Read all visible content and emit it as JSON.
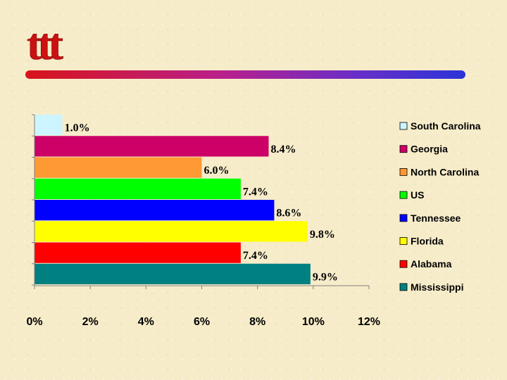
{
  "header": {
    "logo_icon": "triple-t-logo-icon",
    "logo_text": "ttt",
    "bar_colors": [
      "#d8141a",
      "#b8208c",
      "#6a2ec8",
      "#2a34d8"
    ]
  },
  "chart_data": {
    "type": "bar",
    "orientation": "horizontal",
    "categories": [
      "South Carolina",
      "Georgia",
      "North Carolina",
      "US",
      "Tennessee",
      "Florida",
      "Alabama",
      "Mississippi"
    ],
    "values": [
      1.0,
      8.4,
      6.0,
      7.4,
      8.6,
      9.8,
      7.4,
      9.9
    ],
    "value_labels": [
      "1.0%",
      "8.4%",
      "6.0%",
      "7.4%",
      "8.6%",
      "9.8%",
      "7.4%",
      "9.9%"
    ],
    "colors": [
      "#ccf5ff",
      "#cc0066",
      "#ff9933",
      "#00ff00",
      "#0000ff",
      "#ffff00",
      "#ff0000",
      "#008080"
    ],
    "x_ticks": [
      0,
      2,
      4,
      6,
      8,
      10,
      12
    ],
    "x_tick_labels": [
      "0%",
      "2%",
      "4%",
      "6%",
      "8%",
      "10%",
      "12%"
    ],
    "xlim": [
      0,
      12
    ],
    "title": "",
    "xlabel": "",
    "ylabel": "",
    "grid": false,
    "legend_position": "right"
  }
}
